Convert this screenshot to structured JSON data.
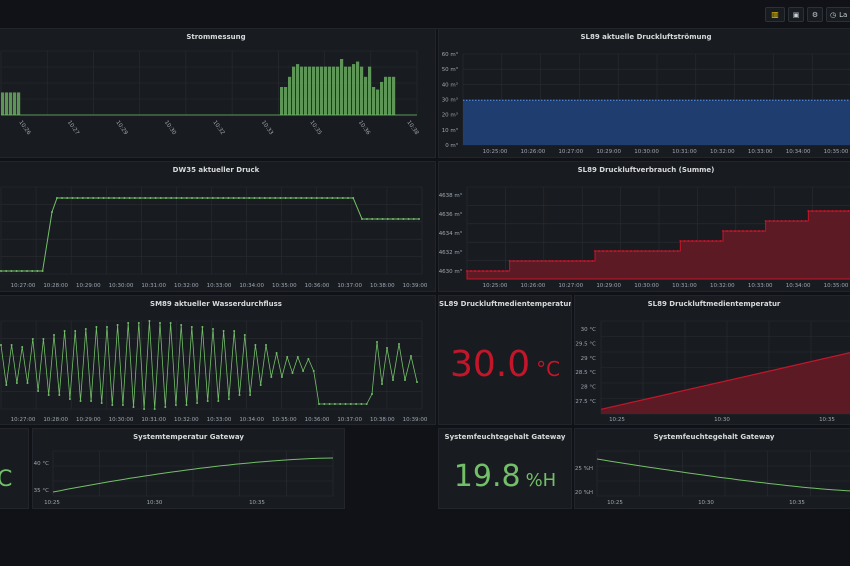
{
  "toolbar": {
    "add_panel_label": "",
    "save_label": "",
    "settings_label": "",
    "timerange_label": "La"
  },
  "panels": {
    "strom": {
      "title": "Strommessung"
    },
    "sl89_stroemung": {
      "title": "SL89 aktuelle Druckluftströmung"
    },
    "dw35": {
      "title": "DW35 aktueller Druck"
    },
    "sl89_verbrauch": {
      "title": "SL89 Druckluftverbrauch (Summe)"
    },
    "sm89": {
      "title": "SM89 aktueller Wasserdurchfluss"
    },
    "sl89_temp_stat": {
      "title": "SL89 Druckluftmedientemperatur",
      "value": "30.0",
      "unit": "°C",
      "color": "#c4162a"
    },
    "sl89_temp_graph": {
      "title": "SL89 Druckluftmedientemperatur"
    },
    "left_stat": {
      "unit_partial": "C",
      "color": "#73bf69"
    },
    "gw_temp": {
      "title": "Systemtemperatur Gateway"
    },
    "gw_hum_stat": {
      "title": "Systemfeuchtegehalt Gateway",
      "value": "19.8",
      "unit": "%H",
      "color": "#73bf69"
    },
    "gw_hum_graph": {
      "title": "Systemfeuchtegehalt Gateway"
    }
  },
  "chart_data": [
    {
      "id": "strom",
      "type": "bar",
      "title": "Strommessung",
      "x_ticks": [
        "10:26",
        "10:27",
        "10:29",
        "10:30",
        "10:32",
        "10:33",
        "10:35",
        "10:36",
        "10:38"
      ],
      "colors": {
        "bar": "#73bf69"
      }
    },
    {
      "id": "sl89_stroemung",
      "type": "area",
      "title": "SL89 aktuelle Druckluftströmung",
      "y_ticks": [
        "60 m³",
        "50 m³",
        "40 m³",
        "30 m³",
        "20 m³",
        "10 m³",
        "0 m³"
      ],
      "x_ticks": [
        "10:25:00",
        "10:26:00",
        "10:27:00",
        "10:29:00",
        "10:30:00",
        "10:31:00",
        "10:32:00",
        "10:33:00",
        "10:34:00",
        "10:35:00"
      ],
      "ylim": [
        0,
        60
      ],
      "value": 29.5,
      "colors": {
        "line": "#5794f2",
        "fill": "#1f3d6e"
      }
    },
    {
      "id": "dw35",
      "type": "line",
      "title": "DW35 aktueller Druck",
      "x_ticks": [
        "10:27:00",
        "10:28:00",
        "10:29:00",
        "10:30:00",
        "10:31:00",
        "10:32:00",
        "10:33:00",
        "10:34:00",
        "10:35:00",
        "10:36:00",
        "10:37:00",
        "10:38:00",
        "10:39:00"
      ],
      "colors": {
        "line": "#73bf69"
      }
    },
    {
      "id": "sl89_verbrauch",
      "type": "area",
      "title": "SL89 Druckluftverbrauch (Summe)",
      "y_ticks": [
        "4638 m³",
        "4636 m³",
        "4634 m³",
        "4632 m³",
        "4630 m³"
      ],
      "x_ticks": [
        "10:25:00",
        "10:26:00",
        "10:27:00",
        "10:29:00",
        "10:30:00",
        "10:31:00",
        "10:32:00",
        "10:33:00",
        "10:34:00",
        "10:35:00"
      ],
      "ylim": [
        4629.2,
        4638.4
      ],
      "steps": [
        4630.0,
        4631.0,
        4631.0,
        4632.0,
        4632.0,
        4633.0,
        4634.0,
        4635.0,
        4636.0
      ],
      "colors": {
        "line": "#c4162a",
        "fill": "#5c1a24"
      }
    },
    {
      "id": "sm89",
      "type": "line",
      "title": "SM89 aktueller Wasserdurchfluss",
      "x_ticks": [
        "10:27:00",
        "10:28:00",
        "10:29:00",
        "10:30:00",
        "10:31:00",
        "10:32:00",
        "10:33:00",
        "10:34:00",
        "10:35:00",
        "10:36:00",
        "10:37:00",
        "10:38:00",
        "10:39:00"
      ],
      "colors": {
        "line": "#73bf69"
      }
    },
    {
      "id": "sl89_temp_graph",
      "type": "area",
      "title": "SL89 Druckluftmedientemperatur",
      "y_ticks": [
        "30 °C",
        "29.5 °C",
        "29 °C",
        "28.5 °C",
        "28 °C",
        "27.5 °C"
      ],
      "x_ticks": [
        "10:25",
        "10:30",
        "10:35"
      ],
      "ylim": [
        27.2,
        30.2
      ],
      "start": 27.35,
      "end": 29.2,
      "colors": {
        "line": "#c4162a",
        "fill": "#5c1a24"
      }
    },
    {
      "id": "gw_temp",
      "type": "line",
      "title": "Systemtemperatur Gateway",
      "y_ticks": [
        "40 °C",
        "35 °C"
      ],
      "x_ticks": [
        "10:25",
        "10:30",
        "10:35"
      ],
      "colors": {
        "line": "#73bf69"
      }
    },
    {
      "id": "gw_hum_graph",
      "type": "line",
      "title": "Systemfeuchtegehalt Gateway",
      "y_ticks": [
        "25 %H",
        "20 %H"
      ],
      "x_ticks": [
        "10:25",
        "10:30",
        "10:35"
      ],
      "colors": {
        "line": "#73bf69"
      }
    }
  ]
}
